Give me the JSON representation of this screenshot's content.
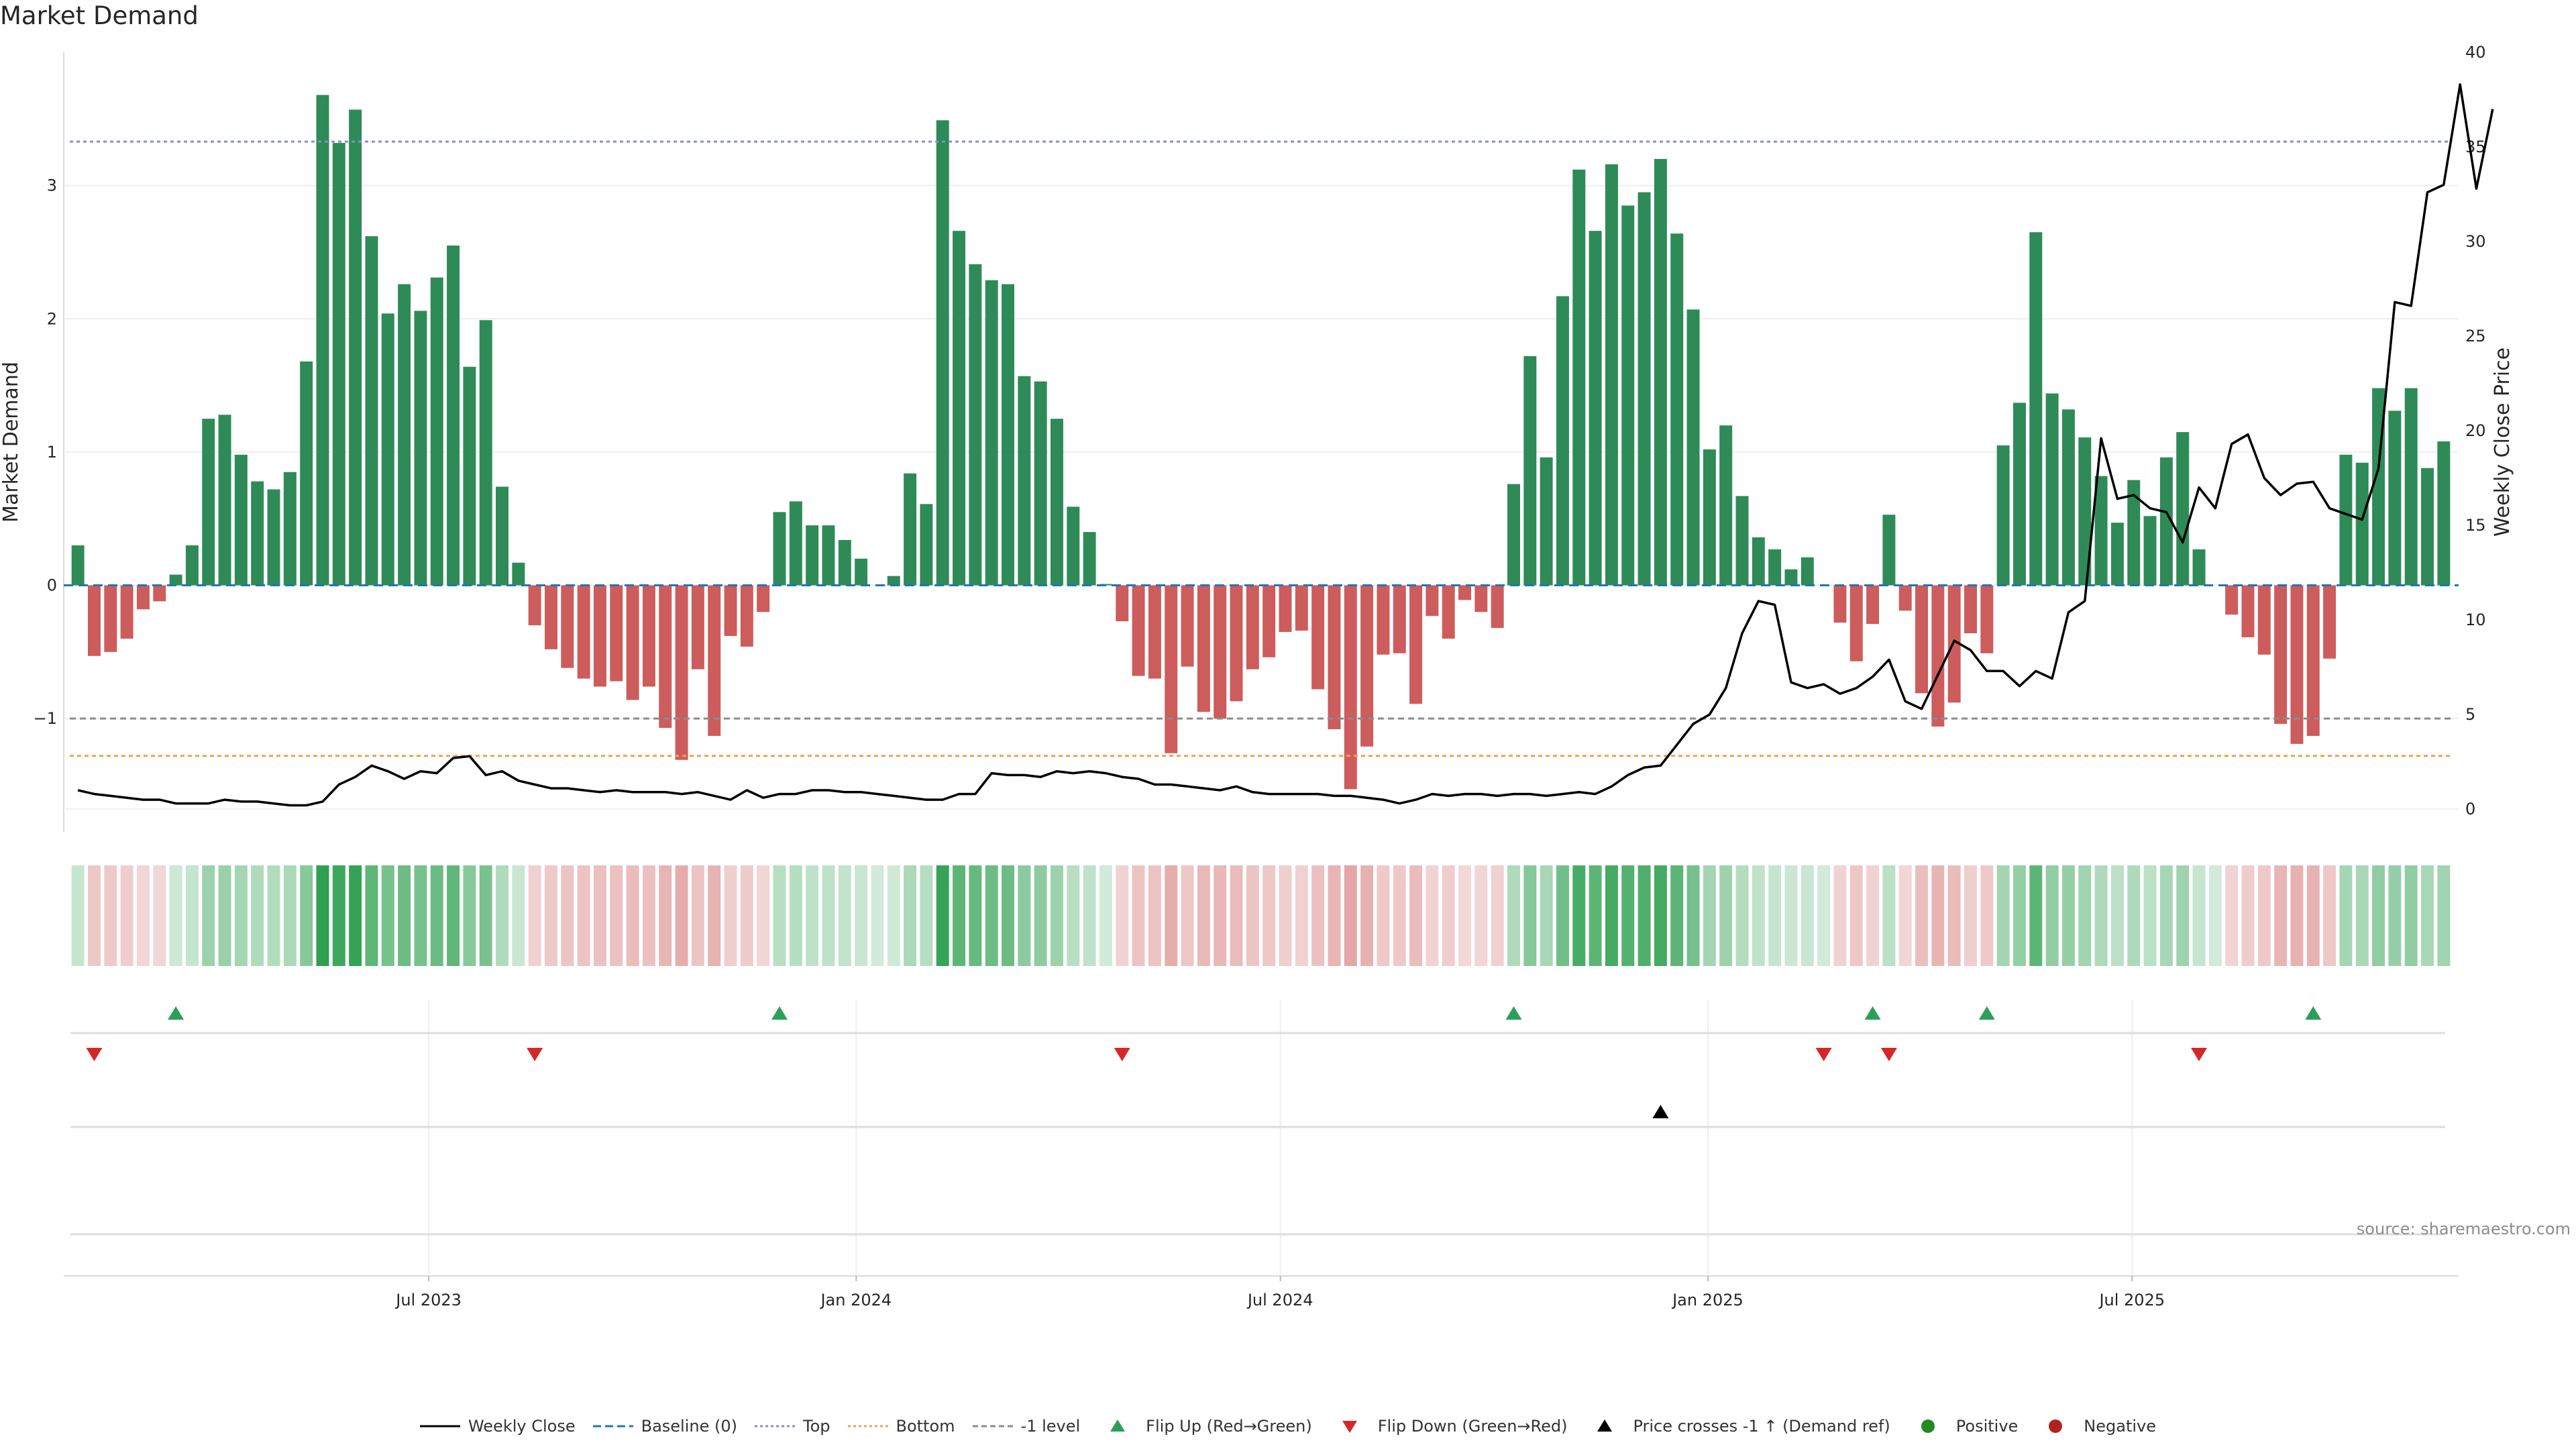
{
  "chart_data": {
    "type": "bar",
    "title": "Market Demand",
    "ylabel": "Market Demand",
    "y2label": "Weekly Close Price",
    "ylim": [
      -1.85,
      4.0
    ],
    "y2lim": [
      -1.2,
      40.0
    ],
    "yticks": [
      -1,
      0,
      1,
      2,
      3
    ],
    "yticklabels": [
      "−1",
      "0",
      "1",
      "2",
      "3"
    ],
    "y2ticks": [
      0,
      5,
      10,
      15,
      20,
      25,
      30,
      35,
      40
    ],
    "xtick_labels": [
      "Jul 2023",
      "Jan 2024",
      "Jul 2024",
      "Jan 2025",
      "Jul 2025"
    ],
    "xtick_index": [
      21.5,
      47.7,
      73.7,
      99.9,
      125.9
    ],
    "reference_lines": [
      {
        "name": "Top",
        "value": 3.33,
        "color": "#8b8fc2"
      },
      {
        "name": "Bottom",
        "value": -1.28,
        "color": "#f0a050"
      },
      {
        "name": "-1 level",
        "value": -1.0,
        "color": "#8c8c8c"
      }
    ],
    "colors": {
      "positive": "#2e8b57",
      "negative": "#cd5c5c",
      "price": "#000000",
      "flip_up": "#2ca05a",
      "flip_down": "#d62728",
      "baseline": "#1f77b4"
    },
    "demand": [
      0.3,
      -0.53,
      -0.5,
      -0.4,
      -0.18,
      -0.12,
      0.08,
      0.3,
      1.25,
      1.28,
      0.98,
      0.78,
      0.72,
      0.85,
      1.68,
      3.68,
      3.32,
      3.57,
      2.62,
      2.04,
      2.26,
      2.06,
      2.31,
      2.55,
      1.64,
      1.99,
      0.74,
      0.17,
      -0.3,
      -0.48,
      -0.62,
      -0.7,
      -0.76,
      -0.72,
      -0.86,
      -0.76,
      -1.07,
      -1.31,
      -0.63,
      -1.13,
      -0.38,
      -0.46,
      -0.2,
      0.55,
      0.63,
      0.45,
      0.45,
      0.34,
      0.2,
      0.0,
      0.07,
      0.84,
      0.61,
      3.49,
      2.66,
      2.41,
      2.29,
      2.26,
      1.57,
      1.53,
      1.25,
      0.59,
      0.4,
      0.01,
      -0.27,
      -0.68,
      -0.7,
      -1.26,
      -0.61,
      -0.95,
      -1.0,
      -0.87,
      -0.63,
      -0.54,
      -0.35,
      -0.34,
      -0.78,
      -1.08,
      -1.53,
      -1.21,
      -0.52,
      -0.51,
      -0.89,
      -0.23,
      -0.4,
      -0.11,
      -0.2,
      -0.32,
      0.76,
      1.72,
      0.96,
      2.17,
      3.12,
      2.66,
      3.16,
      2.85,
      2.95,
      3.2,
      2.64,
      2.07,
      1.02,
      1.2,
      0.67,
      0.36,
      0.27,
      0.12,
      0.21,
      0.0,
      -0.28,
      -0.57,
      -0.29,
      0.53,
      -0.19,
      -0.81,
      -1.06,
      -0.88,
      -0.36,
      -0.51,
      1.05,
      1.37,
      2.65,
      1.44,
      1.32,
      1.11,
      0.82,
      0.47,
      0.79,
      0.52,
      0.96,
      1.15,
      0.27,
      0.0,
      -0.22,
      -0.39,
      -0.52,
      -1.04,
      -1.19,
      -1.13,
      -0.55,
      0.98,
      0.92,
      1.48,
      1.31,
      1.48,
      0.88,
      1.08
    ],
    "price": [
      1.0,
      0.8,
      0.7,
      0.6,
      0.5,
      0.5,
      0.3,
      0.3,
      0.3,
      0.5,
      0.4,
      0.4,
      0.3,
      0.2,
      0.2,
      0.4,
      1.3,
      1.7,
      2.3,
      2.0,
      1.6,
      2.0,
      1.9,
      2.7,
      2.8,
      1.8,
      2.0,
      1.5,
      1.3,
      1.1,
      1.1,
      1.0,
      0.9,
      1.0,
      0.9,
      0.9,
      0.9,
      0.8,
      0.9,
      0.7,
      0.5,
      1.0,
      0.6,
      0.8,
      0.8,
      1.0,
      1.0,
      0.9,
      0.9,
      0.8,
      0.7,
      0.6,
      0.5,
      0.5,
      0.8,
      0.8,
      1.9,
      1.8,
      1.8,
      1.7,
      2.0,
      1.9,
      2.0,
      1.9,
      1.7,
      1.6,
      1.3,
      1.3,
      1.2,
      1.1,
      1.0,
      1.2,
      0.9,
      0.8,
      0.8,
      0.8,
      0.8,
      0.7,
      0.7,
      0.6,
      0.5,
      0.3,
      0.5,
      0.8,
      0.7,
      0.8,
      0.8,
      0.7,
      0.8,
      0.8,
      0.7,
      0.8,
      0.9,
      0.8,
      1.2,
      1.8,
      2.2,
      2.3,
      3.4,
      4.5,
      5.0,
      6.4,
      9.3,
      11.0,
      10.8,
      6.7,
      6.4,
      6.6,
      6.1,
      6.4,
      7.0,
      7.9,
      5.7,
      5.3,
      7.1,
      8.9,
      8.4,
      7.3,
      7.3,
      6.5,
      7.3,
      6.9,
      10.4,
      11.0,
      19.6,
      16.4,
      16.6,
      15.9,
      15.7,
      14.1,
      17.0,
      15.9,
      19.3,
      19.8,
      17.5,
      16.6,
      17.2,
      17.3,
      15.9,
      15.6,
      15.3,
      18.0,
      26.8,
      26.6,
      32.6,
      33.0,
      38.3,
      32.8,
      37.0
    ],
    "flip_up": [
      6,
      43,
      88,
      110,
      117,
      137
    ],
    "flip_down": [
      1,
      28,
      64,
      107,
      111,
      130
    ],
    "price_cross": [
      97
    ],
    "source": "source: sharemaestro.com",
    "legend": [
      "Weekly Close",
      "Baseline (0)",
      "Top",
      "Bottom",
      "-1 level",
      "Flip Up (Red→Green)",
      "Flip Down (Green→Red)",
      "Price crosses -1 ↑ (Demand ref)",
      "Positive",
      "Negative"
    ]
  }
}
